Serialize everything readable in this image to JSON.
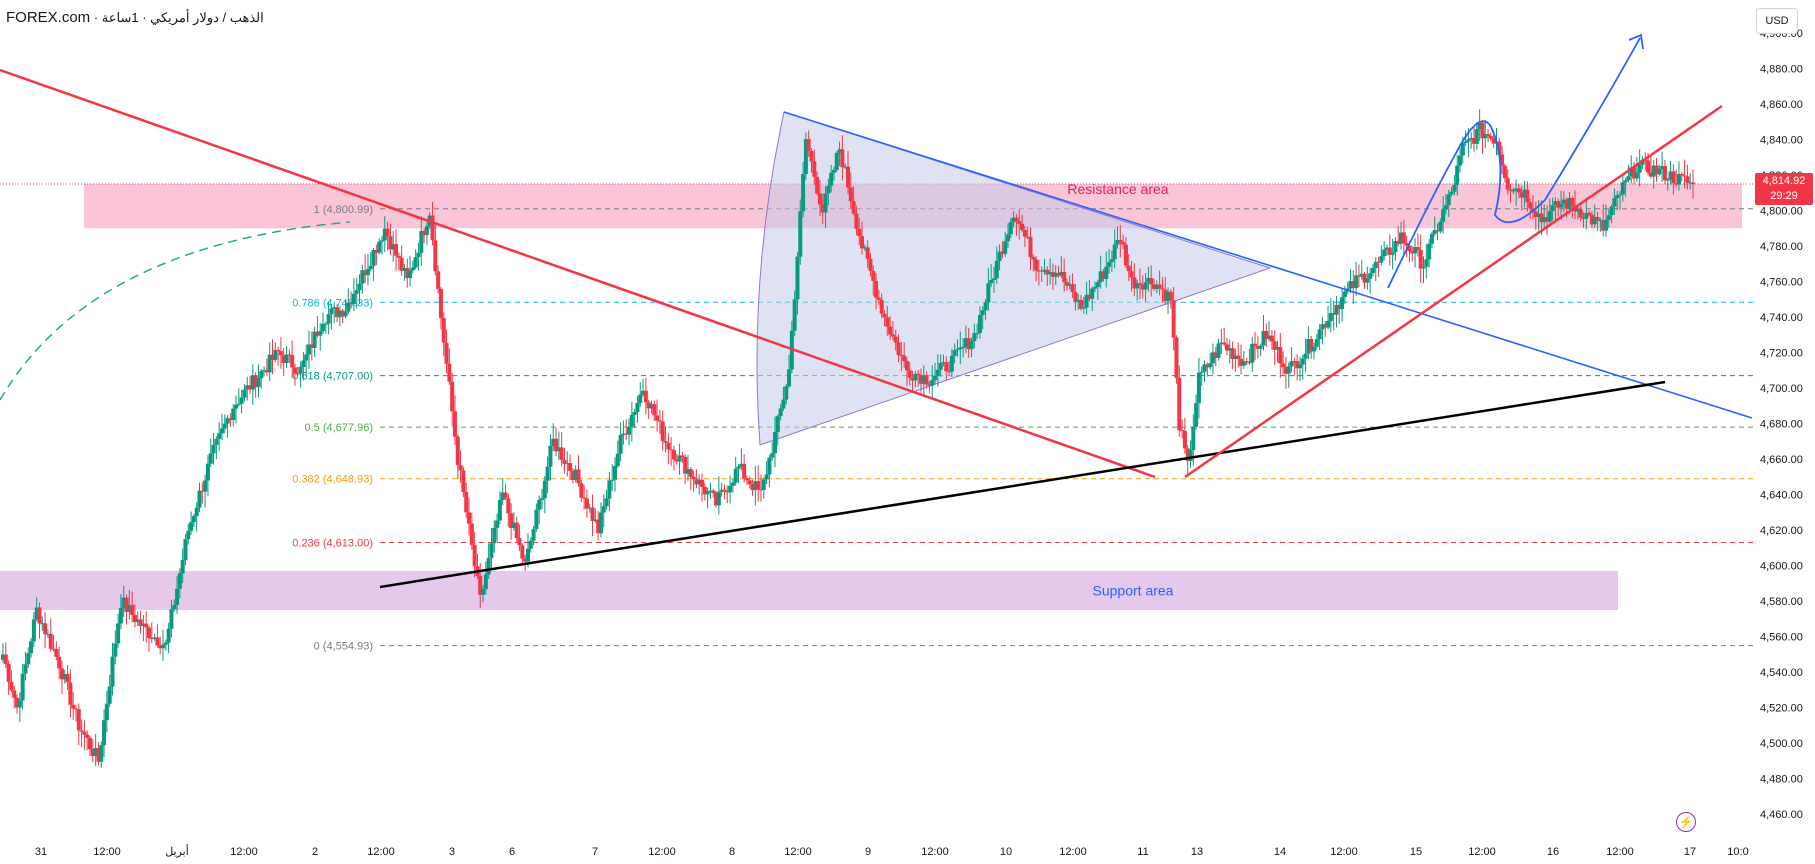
{
  "header": {
    "brand": "FOREX.com",
    "title": "· الذهب / دولار أمريكي · 1ساعة"
  },
  "currency_button": "USD",
  "price_label": {
    "price": "4,814.92",
    "countdown": "29:29"
  },
  "colors": {
    "up": "#089981",
    "down": "#f23645",
    "resistance_zone": "#f8bbd0",
    "support_zone": "#e1bee7",
    "triangle_fill": "#c5cae9",
    "red_line": "#f23645",
    "blue_line": "#2962ff",
    "black_line": "#000000"
  },
  "icons": {
    "flash": "lightning-icon"
  },
  "chart_data": {
    "type": "candlestick",
    "ylim": [
      4450,
      4905
    ],
    "y_ticks": [
      "4,460.00",
      "4,480.00",
      "4,500.00",
      "4,520.00",
      "4,540.00",
      "4,560.00",
      "4,580.00",
      "4,600.00",
      "4,620.00",
      "4,640.00",
      "4,660.00",
      "4,680.00",
      "4,700.00",
      "4,720.00",
      "4,740.00",
      "4,760.00",
      "4,780.00",
      "4,800.00",
      "4,820.00",
      "4,840.00",
      "4,860.00",
      "4,880.00",
      "4,900.00"
    ],
    "x_ticks": [
      "31",
      "12:00",
      "أبريل",
      "12:00",
      "2",
      "12:00",
      "3",
      "6",
      "7",
      "12:00",
      "8",
      "12:00",
      "9",
      "12:00",
      "10",
      "12:00",
      "11",
      "13",
      "14",
      "12:00",
      "15",
      "12:00",
      "16",
      "12:00",
      "17",
      "10:0"
    ],
    "fibonacci": [
      {
        "label": "1 (4,800.99)",
        "value": 4800.99,
        "color": "#787b86"
      },
      {
        "label": "0.786 (4,748.33)",
        "value": 4748.33,
        "color": "#00bcd4"
      },
      {
        "label": "0.618 (4,707.00)",
        "value": 4707.0,
        "color": "#089981"
      },
      {
        "label": "0.5 (4,677.96)",
        "value": 4677.96,
        "color": "#4caf50"
      },
      {
        "label": "0.382 (4,648.93)",
        "value": 4648.93,
        "color": "#ff9800"
      },
      {
        "label": "0.236 (4,613.00)",
        "value": 4613.0,
        "color": "#f23645"
      },
      {
        "label": "0 (4,554.93)",
        "value": 4554.93,
        "color": "#787b86"
      }
    ],
    "zones": [
      {
        "label": "Resistance area",
        "from": 4790,
        "to": 4815
      },
      {
        "label": "Support area",
        "from": 4575,
        "to": 4597
      }
    ],
    "last_price": 4814.92,
    "anchors": [
      [
        0,
        4550
      ],
      [
        5,
        4520
      ],
      [
        12,
        4575
      ],
      [
        20,
        4545
      ],
      [
        27,
        4510
      ],
      [
        34,
        4490
      ],
      [
        42,
        4580
      ],
      [
        50,
        4565
      ],
      [
        58,
        4555
      ],
      [
        66,
        4620
      ],
      [
        74,
        4660
      ],
      [
        82,
        4690
      ],
      [
        90,
        4705
      ],
      [
        98,
        4720
      ],
      [
        106,
        4710
      ],
      [
        114,
        4740
      ],
      [
        122,
        4745
      ],
      [
        130,
        4770
      ],
      [
        136,
        4790
      ],
      [
        144,
        4760
      ],
      [
        152,
        4800
      ],
      [
        156,
        4740
      ],
      [
        162,
        4660
      ],
      [
        170,
        4580
      ],
      [
        178,
        4640
      ],
      [
        186,
        4600
      ],
      [
        196,
        4670
      ],
      [
        204,
        4650
      ],
      [
        212,
        4620
      ],
      [
        220,
        4670
      ],
      [
        228,
        4700
      ],
      [
        236,
        4670
      ],
      [
        246,
        4650
      ],
      [
        254,
        4635
      ],
      [
        262,
        4655
      ],
      [
        270,
        4640
      ],
      [
        276,
        4680
      ],
      [
        280,
        4710
      ],
      [
        286,
        4840
      ],
      [
        292,
        4800
      ],
      [
        298,
        4835
      ],
      [
        306,
        4780
      ],
      [
        314,
        4740
      ],
      [
        322,
        4710
      ],
      [
        330,
        4705
      ],
      [
        338,
        4715
      ],
      [
        346,
        4730
      ],
      [
        354,
        4770
      ],
      [
        360,
        4800
      ],
      [
        368,
        4770
      ],
      [
        376,
        4765
      ],
      [
        384,
        4745
      ],
      [
        392,
        4765
      ],
      [
        398,
        4785
      ],
      [
        402,
        4760
      ],
      [
        410,
        4760
      ],
      [
        416,
        4750
      ],
      [
        419,
        4680
      ],
      [
        422,
        4655
      ],
      [
        426,
        4705
      ],
      [
        434,
        4725
      ],
      [
        442,
        4715
      ],
      [
        450,
        4730
      ],
      [
        458,
        4710
      ],
      [
        466,
        4725
      ],
      [
        474,
        4745
      ],
      [
        482,
        4760
      ],
      [
        490,
        4770
      ],
      [
        498,
        4785
      ],
      [
        506,
        4770
      ],
      [
        512,
        4795
      ],
      [
        516,
        4810
      ],
      [
        520,
        4835
      ],
      [
        526,
        4845
      ],
      [
        532,
        4840
      ],
      [
        536,
        4815
      ],
      [
        542,
        4810
      ],
      [
        548,
        4795
      ],
      [
        556,
        4805
      ],
      [
        562,
        4800
      ],
      [
        570,
        4790
      ],
      [
        576,
        4810
      ],
      [
        582,
        4825
      ],
      [
        590,
        4822
      ],
      [
        596,
        4818
      ],
      [
        602,
        4815
      ]
    ]
  }
}
